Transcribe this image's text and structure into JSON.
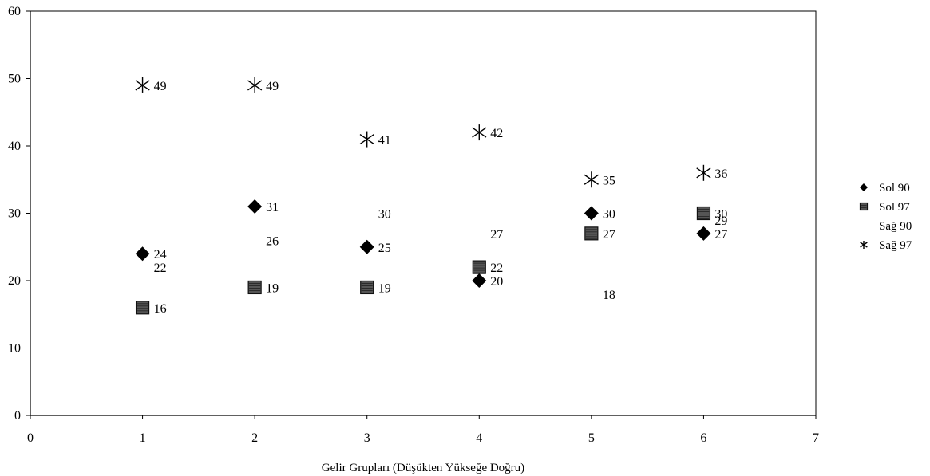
{
  "chart_data": {
    "type": "scatter",
    "xlabel": "Gelir Grupları (Düşükten Yükseğe Doğru)",
    "ylabel": "",
    "xlim": [
      0,
      7
    ],
    "ylim": [
      0,
      60
    ],
    "x_ticks": [
      "0",
      "1",
      "2",
      "3",
      "4",
      "5",
      "6",
      "7"
    ],
    "y_ticks": [
      "0",
      "10",
      "20",
      "30",
      "40",
      "50",
      "60"
    ],
    "grid": false,
    "legend_position": "right",
    "series": [
      {
        "name": "Sol 90",
        "marker": "diamond",
        "color": "#000000",
        "points": [
          {
            "x": 1,
            "y": 24,
            "label": "24"
          },
          {
            "x": 2,
            "y": 31,
            "label": "31"
          },
          {
            "x": 3,
            "y": 25,
            "label": "25"
          },
          {
            "x": 4,
            "y": 20,
            "label": "20"
          },
          {
            "x": 5,
            "y": 30,
            "label": "30"
          },
          {
            "x": 6,
            "y": 27,
            "label": "27"
          }
        ]
      },
      {
        "name": "Sol 97",
        "marker": "square",
        "color": "#404040",
        "points": [
          {
            "x": 1,
            "y": 16,
            "label": "16"
          },
          {
            "x": 2,
            "y": 19,
            "label": "19"
          },
          {
            "x": 3,
            "y": 19,
            "label": "19"
          },
          {
            "x": 4,
            "y": 22,
            "label": "22"
          },
          {
            "x": 5,
            "y": 27,
            "label": "27"
          },
          {
            "x": 6,
            "y": 30,
            "label": "30"
          }
        ]
      },
      {
        "name": "Sağ 90",
        "marker": "none",
        "color": "#000000",
        "points": [
          {
            "x": 1,
            "y": 22,
            "label": "22"
          },
          {
            "x": 2,
            "y": 26,
            "label": "26"
          },
          {
            "x": 3,
            "y": 30,
            "label": "30"
          },
          {
            "x": 4,
            "y": 27,
            "label": "27"
          },
          {
            "x": 5,
            "y": 18,
            "label": "18"
          },
          {
            "x": 6,
            "y": 29,
            "label": "29"
          }
        ]
      },
      {
        "name": "Sağ 97",
        "marker": "asterisk",
        "color": "#000000",
        "points": [
          {
            "x": 1,
            "y": 49,
            "label": "49"
          },
          {
            "x": 2,
            "y": 49,
            "label": "49"
          },
          {
            "x": 3,
            "y": 41,
            "label": "41"
          },
          {
            "x": 4,
            "y": 42,
            "label": "42"
          },
          {
            "x": 5,
            "y": 35,
            "label": "35"
          },
          {
            "x": 6,
            "y": 36,
            "label": "36"
          }
        ]
      }
    ]
  }
}
